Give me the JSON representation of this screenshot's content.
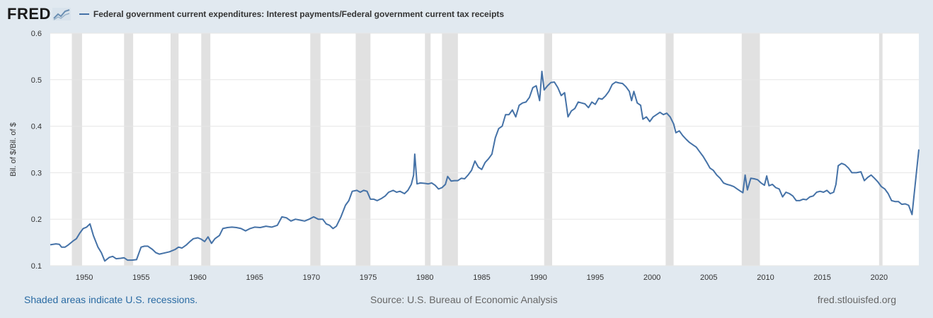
{
  "header": {
    "logo_text": "FRED",
    "logo_icon": "line-chart-icon",
    "series_title": "Federal government current expenditures: Interest payments/Federal government current tax receipts"
  },
  "footer": {
    "recession_note": "Shaded areas indicate U.S. recessions.",
    "source": "Source: U.S. Bureau of Economic Analysis",
    "site": "fred.stlouisfed.org"
  },
  "colors": {
    "line": "#4572a7",
    "recession": "#e1e1e1",
    "grid": "#e6e6e6",
    "background": "#e1e9f0",
    "plot": "#ffffff"
  },
  "chart_data": {
    "type": "line",
    "title": "Federal government current expenditures: Interest payments/Federal government current tax receipts",
    "xlabel": "",
    "ylabel": "Bil. of $/Bil. of $",
    "xlim": [
      1947.0,
      2023.5
    ],
    "ylim": [
      0.1,
      0.6
    ],
    "yticks": [
      0.1,
      0.2,
      0.3,
      0.4,
      0.5,
      0.6
    ],
    "ytick_labels": [
      "0.1",
      "0.2",
      "0.3",
      "0.4",
      "0.5",
      "0.6"
    ],
    "xticks": [
      1950,
      1955,
      1960,
      1965,
      1970,
      1975,
      1980,
      1985,
      1990,
      1995,
      2000,
      2005,
      2010,
      2015,
      2020
    ],
    "xtick_labels": [
      "1950",
      "1955",
      "1960",
      "1965",
      "1970",
      "1975",
      "1980",
      "1985",
      "1990",
      "1995",
      "2000",
      "2005",
      "2010",
      "2015",
      "2020"
    ],
    "grid": "horizontal",
    "recessions": [
      [
        1948.9,
        1949.8
      ],
      [
        1953.5,
        1954.3
      ],
      [
        1957.6,
        1958.3
      ],
      [
        1960.3,
        1961.1
      ],
      [
        1969.9,
        1970.8
      ],
      [
        1973.9,
        1975.2
      ],
      [
        1980.0,
        1980.5
      ],
      [
        1981.5,
        1982.9
      ],
      [
        1990.5,
        1991.2
      ],
      [
        2001.2,
        2001.9
      ],
      [
        2007.9,
        2009.5
      ],
      [
        2020.0,
        2020.3
      ]
    ],
    "series": [
      {
        "name": "Federal government current expenditures: Interest payments/Federal government current tax receipts",
        "points": [
          [
            1947.0,
            0.145
          ],
          [
            1947.5,
            0.147
          ],
          [
            1947.8,
            0.146
          ],
          [
            1948.0,
            0.14
          ],
          [
            1948.3,
            0.14
          ],
          [
            1948.6,
            0.145
          ],
          [
            1949.0,
            0.153
          ],
          [
            1949.3,
            0.158
          ],
          [
            1949.6,
            0.17
          ],
          [
            1949.9,
            0.18
          ],
          [
            1950.2,
            0.183
          ],
          [
            1950.5,
            0.19
          ],
          [
            1950.8,
            0.165
          ],
          [
            1951.2,
            0.14
          ],
          [
            1951.5,
            0.128
          ],
          [
            1951.8,
            0.11
          ],
          [
            1952.2,
            0.118
          ],
          [
            1952.5,
            0.12
          ],
          [
            1952.8,
            0.115
          ],
          [
            1953.2,
            0.116
          ],
          [
            1953.5,
            0.117
          ],
          [
            1953.8,
            0.112
          ],
          [
            1954.2,
            0.112
          ],
          [
            1954.6,
            0.113
          ],
          [
            1955.0,
            0.14
          ],
          [
            1955.3,
            0.142
          ],
          [
            1955.6,
            0.142
          ],
          [
            1956.0,
            0.135
          ],
          [
            1956.3,
            0.128
          ],
          [
            1956.6,
            0.125
          ],
          [
            1957.0,
            0.127
          ],
          [
            1957.5,
            0.13
          ],
          [
            1958.0,
            0.135
          ],
          [
            1958.3,
            0.14
          ],
          [
            1958.6,
            0.138
          ],
          [
            1959.0,
            0.145
          ],
          [
            1959.3,
            0.152
          ],
          [
            1959.6,
            0.158
          ],
          [
            1960.0,
            0.16
          ],
          [
            1960.3,
            0.157
          ],
          [
            1960.6,
            0.152
          ],
          [
            1960.9,
            0.162
          ],
          [
            1961.2,
            0.148
          ],
          [
            1961.5,
            0.158
          ],
          [
            1961.9,
            0.165
          ],
          [
            1962.2,
            0.18
          ],
          [
            1962.6,
            0.182
          ],
          [
            1963.0,
            0.183
          ],
          [
            1963.4,
            0.182
          ],
          [
            1963.8,
            0.18
          ],
          [
            1964.2,
            0.175
          ],
          [
            1964.6,
            0.18
          ],
          [
            1965.0,
            0.183
          ],
          [
            1965.5,
            0.182
          ],
          [
            1966.0,
            0.185
          ],
          [
            1966.5,
            0.183
          ],
          [
            1967.0,
            0.187
          ],
          [
            1967.4,
            0.205
          ],
          [
            1967.8,
            0.203
          ],
          [
            1968.2,
            0.196
          ],
          [
            1968.6,
            0.2
          ],
          [
            1969.0,
            0.198
          ],
          [
            1969.4,
            0.196
          ],
          [
            1969.8,
            0.2
          ],
          [
            1970.2,
            0.205
          ],
          [
            1970.6,
            0.2
          ],
          [
            1971.0,
            0.2
          ],
          [
            1971.3,
            0.19
          ],
          [
            1971.6,
            0.187
          ],
          [
            1971.9,
            0.18
          ],
          [
            1972.2,
            0.185
          ],
          [
            1972.6,
            0.205
          ],
          [
            1973.0,
            0.23
          ],
          [
            1973.3,
            0.24
          ],
          [
            1973.6,
            0.26
          ],
          [
            1974.0,
            0.262
          ],
          [
            1974.3,
            0.258
          ],
          [
            1974.6,
            0.262
          ],
          [
            1974.9,
            0.26
          ],
          [
            1975.2,
            0.243
          ],
          [
            1975.5,
            0.243
          ],
          [
            1975.8,
            0.24
          ],
          [
            1976.2,
            0.245
          ],
          [
            1976.5,
            0.25
          ],
          [
            1976.8,
            0.258
          ],
          [
            1977.2,
            0.262
          ],
          [
            1977.5,
            0.258
          ],
          [
            1977.8,
            0.26
          ],
          [
            1978.2,
            0.255
          ],
          [
            1978.5,
            0.262
          ],
          [
            1978.8,
            0.275
          ],
          [
            1979.0,
            0.295
          ],
          [
            1979.1,
            0.34
          ],
          [
            1979.3,
            0.276
          ],
          [
            1979.6,
            0.278
          ],
          [
            1980.0,
            0.277
          ],
          [
            1980.3,
            0.276
          ],
          [
            1980.6,
            0.278
          ],
          [
            1980.9,
            0.273
          ],
          [
            1981.2,
            0.265
          ],
          [
            1981.5,
            0.268
          ],
          [
            1981.8,
            0.275
          ],
          [
            1982.0,
            0.292
          ],
          [
            1982.3,
            0.282
          ],
          [
            1982.6,
            0.283
          ],
          [
            1982.9,
            0.283
          ],
          [
            1983.2,
            0.288
          ],
          [
            1983.5,
            0.287
          ],
          [
            1983.8,
            0.295
          ],
          [
            1984.1,
            0.305
          ],
          [
            1984.4,
            0.325
          ],
          [
            1984.7,
            0.312
          ],
          [
            1985.0,
            0.307
          ],
          [
            1985.3,
            0.322
          ],
          [
            1985.6,
            0.33
          ],
          [
            1985.9,
            0.34
          ],
          [
            1986.2,
            0.375
          ],
          [
            1986.5,
            0.395
          ],
          [
            1986.8,
            0.4
          ],
          [
            1987.1,
            0.425
          ],
          [
            1987.4,
            0.425
          ],
          [
            1987.7,
            0.435
          ],
          [
            1988.0,
            0.42
          ],
          [
            1988.3,
            0.445
          ],
          [
            1988.6,
            0.45
          ],
          [
            1988.9,
            0.452
          ],
          [
            1989.2,
            0.462
          ],
          [
            1989.5,
            0.483
          ],
          [
            1989.8,
            0.487
          ],
          [
            1990.1,
            0.455
          ],
          [
            1990.3,
            0.518
          ],
          [
            1990.5,
            0.478
          ],
          [
            1990.8,
            0.487
          ],
          [
            1991.1,
            0.494
          ],
          [
            1991.4,
            0.495
          ],
          [
            1991.7,
            0.483
          ],
          [
            1992.0,
            0.466
          ],
          [
            1992.3,
            0.472
          ],
          [
            1992.6,
            0.42
          ],
          [
            1992.9,
            0.433
          ],
          [
            1993.2,
            0.438
          ],
          [
            1993.5,
            0.452
          ],
          [
            1993.8,
            0.45
          ],
          [
            1994.1,
            0.448
          ],
          [
            1994.4,
            0.44
          ],
          [
            1994.7,
            0.452
          ],
          [
            1995.0,
            0.447
          ],
          [
            1995.3,
            0.46
          ],
          [
            1995.6,
            0.458
          ],
          [
            1995.9,
            0.465
          ],
          [
            1996.2,
            0.475
          ],
          [
            1996.5,
            0.49
          ],
          [
            1996.8,
            0.495
          ],
          [
            1997.1,
            0.493
          ],
          [
            1997.4,
            0.492
          ],
          [
            1997.7,
            0.485
          ],
          [
            1998.0,
            0.475
          ],
          [
            1998.2,
            0.455
          ],
          [
            1998.4,
            0.475
          ],
          [
            1998.7,
            0.45
          ],
          [
            1999.0,
            0.445
          ],
          [
            1999.2,
            0.415
          ],
          [
            1999.5,
            0.42
          ],
          [
            1999.8,
            0.41
          ],
          [
            2000.1,
            0.42
          ],
          [
            2000.4,
            0.425
          ],
          [
            2000.7,
            0.43
          ],
          [
            2001.0,
            0.425
          ],
          [
            2001.3,
            0.428
          ],
          [
            2001.6,
            0.42
          ],
          [
            2001.9,
            0.405
          ],
          [
            2002.1,
            0.386
          ],
          [
            2002.4,
            0.39
          ],
          [
            2002.7,
            0.38
          ],
          [
            2003.0,
            0.372
          ],
          [
            2003.3,
            0.365
          ],
          [
            2003.6,
            0.36
          ],
          [
            2003.9,
            0.355
          ],
          [
            2004.2,
            0.345
          ],
          [
            2004.5,
            0.335
          ],
          [
            2004.8,
            0.323
          ],
          [
            2005.1,
            0.31
          ],
          [
            2005.4,
            0.305
          ],
          [
            2005.7,
            0.295
          ],
          [
            2006.0,
            0.288
          ],
          [
            2006.3,
            0.278
          ],
          [
            2006.6,
            0.275
          ],
          [
            2006.9,
            0.273
          ],
          [
            2007.2,
            0.27
          ],
          [
            2007.5,
            0.265
          ],
          [
            2007.8,
            0.26
          ],
          [
            2008.0,
            0.257
          ],
          [
            2008.2,
            0.295
          ],
          [
            2008.4,
            0.263
          ],
          [
            2008.7,
            0.288
          ],
          [
            2009.0,
            0.287
          ],
          [
            2009.3,
            0.285
          ],
          [
            2009.6,
            0.278
          ],
          [
            2009.9,
            0.273
          ],
          [
            2010.1,
            0.293
          ],
          [
            2010.3,
            0.272
          ],
          [
            2010.6,
            0.275
          ],
          [
            2010.9,
            0.268
          ],
          [
            2011.2,
            0.265
          ],
          [
            2011.5,
            0.248
          ],
          [
            2011.8,
            0.258
          ],
          [
            2012.1,
            0.255
          ],
          [
            2012.4,
            0.25
          ],
          [
            2012.7,
            0.24
          ],
          [
            2013.0,
            0.24
          ],
          [
            2013.3,
            0.243
          ],
          [
            2013.6,
            0.242
          ],
          [
            2013.9,
            0.248
          ],
          [
            2014.2,
            0.25
          ],
          [
            2014.5,
            0.258
          ],
          [
            2014.8,
            0.26
          ],
          [
            2015.1,
            0.258
          ],
          [
            2015.4,
            0.262
          ],
          [
            2015.7,
            0.255
          ],
          [
            2016.0,
            0.258
          ],
          [
            2016.2,
            0.275
          ],
          [
            2016.4,
            0.315
          ],
          [
            2016.7,
            0.32
          ],
          [
            2017.0,
            0.317
          ],
          [
            2017.3,
            0.31
          ],
          [
            2017.6,
            0.3
          ],
          [
            2018.0,
            0.3
          ],
          [
            2018.4,
            0.302
          ],
          [
            2018.7,
            0.283
          ],
          [
            2019.0,
            0.29
          ],
          [
            2019.3,
            0.295
          ],
          [
            2019.6,
            0.288
          ],
          [
            2019.9,
            0.28
          ],
          [
            2020.2,
            0.27
          ],
          [
            2020.5,
            0.265
          ],
          [
            2020.8,
            0.255
          ],
          [
            2021.1,
            0.24
          ],
          [
            2021.4,
            0.238
          ],
          [
            2021.7,
            0.238
          ],
          [
            2022.0,
            0.232
          ],
          [
            2022.3,
            0.233
          ],
          [
            2022.6,
            0.23
          ],
          [
            2022.9,
            0.21
          ],
          [
            2023.5,
            0.35
          ]
        ]
      }
    ]
  }
}
